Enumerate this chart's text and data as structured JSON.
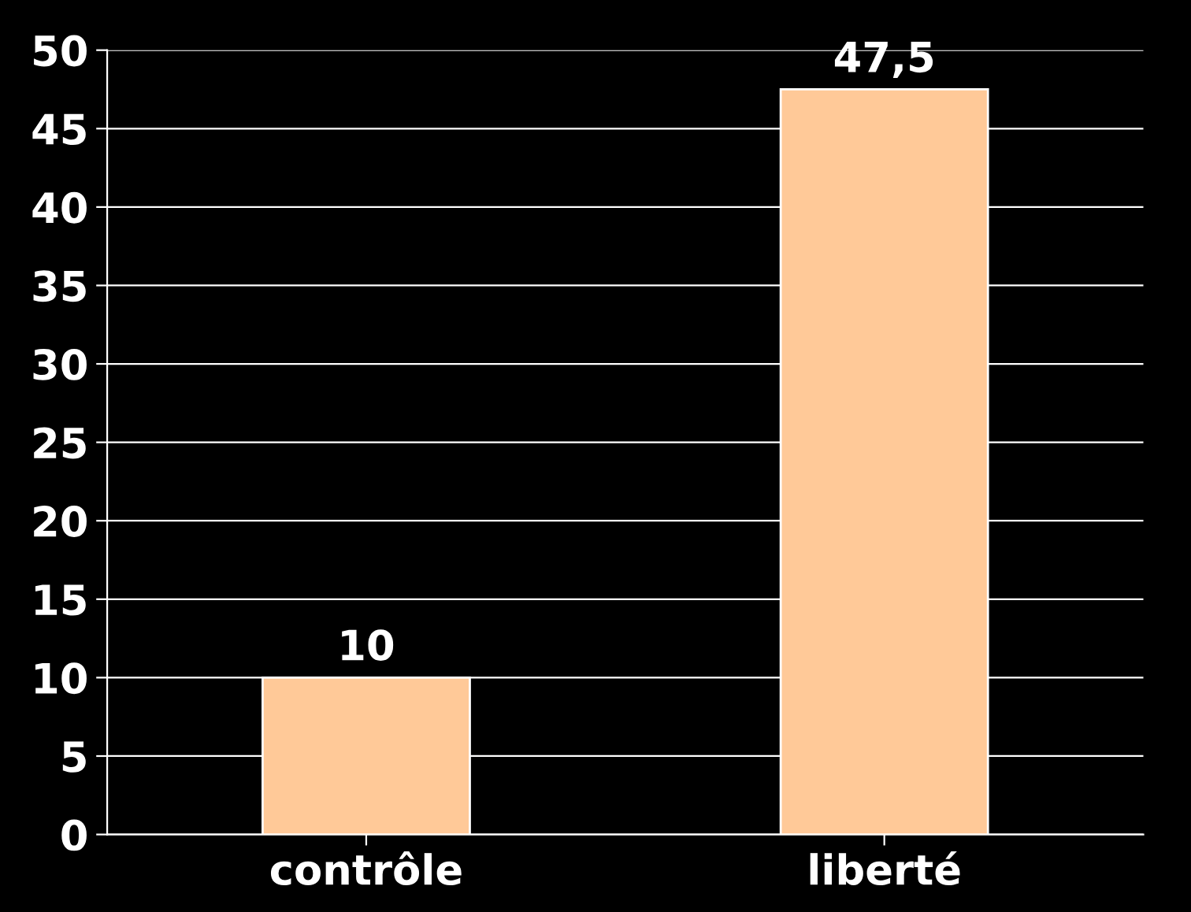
{
  "chart_data": {
    "type": "bar",
    "categories": [
      "contrôle",
      "liberté"
    ],
    "values": [
      10,
      47.5
    ],
    "value_labels": [
      "10",
      "47,5"
    ],
    "color": "#ffc998",
    "ylim": [
      0,
      50
    ],
    "yticks": [
      0,
      5,
      10,
      15,
      20,
      25,
      30,
      35,
      40,
      45,
      50
    ],
    "grid": "y",
    "legend": false
  }
}
